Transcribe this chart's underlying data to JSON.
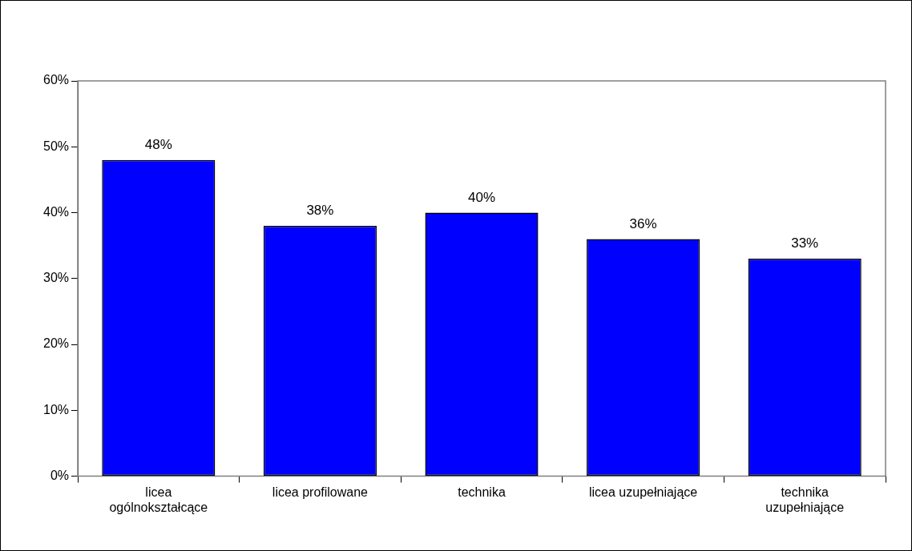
{
  "chart_data": {
    "type": "bar",
    "categories": [
      "licea ogólnokształcące",
      "licea profilowane",
      "technika",
      "licea uzupełniające",
      "technika uzupełniające"
    ],
    "values": [
      48,
      38,
      40,
      36,
      33
    ],
    "value_labels": [
      "48%",
      "38%",
      "40%",
      "36%",
      "33%"
    ],
    "color": "#0000ff",
    "ylim": [
      0,
      60
    ],
    "yticks": [
      {
        "value": 0,
        "label": "0%"
      },
      {
        "value": 10,
        "label": "10%"
      },
      {
        "value": 20,
        "label": "20%"
      },
      {
        "value": 30,
        "label": "30%"
      },
      {
        "value": 40,
        "label": "40%"
      },
      {
        "value": 50,
        "label": "50%"
      },
      {
        "value": 60,
        "label": "60%"
      }
    ],
    "grid": false,
    "legend": false
  }
}
